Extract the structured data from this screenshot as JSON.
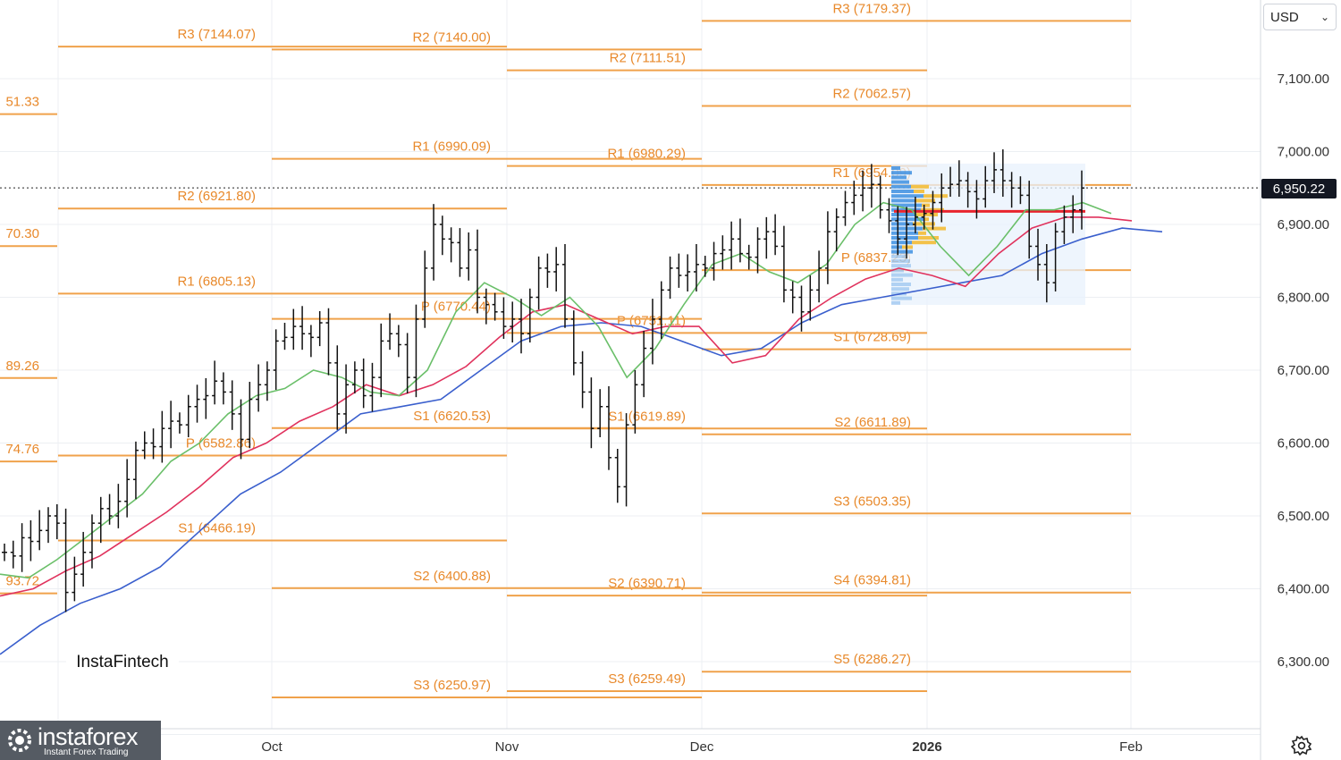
{
  "currency_selector": {
    "value": "USD"
  },
  "current_price_label": "6,950.22",
  "watermark_text": "InstaFintech",
  "brand": {
    "name": "instaforex",
    "tagline": "Instant Forex Trading"
  },
  "colors": {
    "pivot": "#f0a24b",
    "pivot_text": "#e8892b",
    "ma_fast": "#6abf69",
    "ma_mid": "#e0325d",
    "ma_slow": "#3a5fcd",
    "volume_profile_blue": "#3d8fe0",
    "volume_profile_yellow": "#f3c24a",
    "poc_line": "#e8242e",
    "bars": "#111111"
  },
  "icons": {
    "settings": "gear-icon",
    "dropdown": "chevron-down-icon"
  },
  "chart_data": {
    "type": "line",
    "description_series": [
      "price bars (OHLC)",
      "moving averages",
      "monthly pivot levels"
    ],
    "y_axis": {
      "ticks": [
        "6,300.00",
        "6,400.00",
        "6,500.00",
        "6,600.00",
        "6,700.00",
        "6,800.00",
        "6,900.00",
        "7,000.00",
        "7,100.00"
      ],
      "tick_values": [
        6300,
        6400,
        6500,
        6600,
        6700,
        6800,
        6900,
        7000,
        7100
      ],
      "ylim": [
        6220,
        7210
      ]
    },
    "x_axis": {
      "labels": [
        "Oct",
        "Nov",
        "Dec",
        "2026",
        "Feb"
      ]
    },
    "current_price": 6950.22,
    "pivot_levels": [
      {
        "label": "51.33",
        "value": 7051.33,
        "month": "Sep"
      },
      {
        "label": "70.30",
        "value": 6870.3,
        "month": "Sep"
      },
      {
        "label": "89.26",
        "value": 6689.26,
        "month": "Sep"
      },
      {
        "label": "74.76",
        "value": 6574.76,
        "month": "Sep"
      },
      {
        "label": "93.72",
        "value": 6393.72,
        "month": "Sep"
      },
      {
        "label": "R3 (7144.07)",
        "value": 7144.07,
        "month": "Oct"
      },
      {
        "label": "R2 (6921.80)",
        "value": 6921.8,
        "month": "Oct"
      },
      {
        "label": "R1 (6805.13)",
        "value": 6805.13,
        "month": "Oct"
      },
      {
        "label": "P (6582.86)",
        "value": 6582.86,
        "month": "Oct"
      },
      {
        "label": "S1 (6466.19)",
        "value": 6466.19,
        "month": "Oct"
      },
      {
        "label": "R2 (7140.00)",
        "value": 7140.0,
        "month": "Nov"
      },
      {
        "label": "R1 (6990.09)",
        "value": 6990.09,
        "month": "Nov"
      },
      {
        "label": "P (6770.44)",
        "value": 6770.44,
        "month": "Nov"
      },
      {
        "label": "S1 (6620.53)",
        "value": 6620.53,
        "month": "Nov"
      },
      {
        "label": "S2 (6400.88)",
        "value": 6400.88,
        "month": "Nov"
      },
      {
        "label": "S3 (6250.97)",
        "value": 6250.97,
        "month": "Nov"
      },
      {
        "label": "R2 (7111.51)",
        "value": 7111.51,
        "month": "Dec"
      },
      {
        "label": "R1 (6980.29)",
        "value": 6980.29,
        "month": "Dec"
      },
      {
        "label": "P (6751.11)",
        "value": 6751.11,
        "month": "Dec"
      },
      {
        "label": "S1 (6619.89)",
        "value": 6619.89,
        "month": "Dec"
      },
      {
        "label": "S2 (6390.71)",
        "value": 6390.71,
        "month": "Dec"
      },
      {
        "label": "S3 (6259.49)",
        "value": 6259.49,
        "month": "Dec"
      },
      {
        "label": "R3 (7179.37)",
        "value": 7179.37,
        "month": "Jan"
      },
      {
        "label": "R2 (7062.57)",
        "value": 7062.57,
        "month": "Jan"
      },
      {
        "label": "R1 (6954.09)",
        "value": 6954.09,
        "month": "Jan"
      },
      {
        "label": "P (6837.23)",
        "value": 6837.23,
        "month": "Jan"
      },
      {
        "label": "S1 (6728.69)",
        "value": 6728.69,
        "month": "Jan"
      },
      {
        "label": "S2 (6611.89)",
        "value": 6611.89,
        "month": "Jan"
      },
      {
        "label": "S3 (6503.35)",
        "value": 6503.35,
        "month": "Jan"
      },
      {
        "label": "S4 (6394.81)",
        "value": 6394.81,
        "month": "Jan"
      },
      {
        "label": "S5 (6286.27)",
        "value": 6286.27,
        "month": "Jan"
      }
    ],
    "bars_close": [
      6450,
      6445,
      6470,
      6465,
      6480,
      6500,
      6490,
      6395,
      6420,
      6450,
      6490,
      6510,
      6500,
      6520,
      6550,
      6590,
      6600,
      6595,
      6620,
      6630,
      6625,
      6650,
      6660,
      6665,
      6685,
      6670,
      6640,
      6605,
      6660,
      6680,
      6700,
      6740,
      6745,
      6760,
      6750,
      6745,
      6765,
      6710,
      6640,
      6680,
      6700,
      6665,
      6690,
      6740,
      6750,
      6735,
      6690,
      6770,
      6840,
      6900,
      6880,
      6875,
      6840,
      6865,
      6800,
      6790,
      6780,
      6760,
      6770,
      6750,
      6800,
      6840,
      6835,
      6845,
      6770,
      6710,
      6670,
      6620,
      6650,
      6580,
      6540,
      6625,
      6680,
      6730,
      6770,
      6810,
      6840,
      6830,
      6835,
      6845,
      6840,
      6860,
      6865,
      6880,
      6860,
      6855,
      6880,
      6890,
      6870,
      6810,
      6800,
      6780,
      6810,
      6840,
      6890,
      6910,
      6930,
      6940,
      6950,
      6955,
      6920,
      6905,
      6880,
      6900,
      6910,
      6915,
      6930,
      6950,
      6955,
      6960,
      6945,
      6935,
      6960,
      6975,
      6960,
      6950,
      6940,
      6870,
      6845,
      6820,
      6890,
      6910,
      6920,
      6950
    ],
    "ma_fast": [
      6420,
      6415,
      6440,
      6470,
      6500,
      6530,
      6575,
      6600,
      6640,
      6665,
      6675,
      6700,
      6690,
      6670,
      6665,
      6700,
      6780,
      6820,
      6800,
      6775,
      6800,
      6760,
      6690,
      6730,
      6790,
      6845,
      6860,
      6835,
      6820,
      6845,
      6900,
      6930,
      6920,
      6870,
      6830,
      6870,
      6920,
      6920,
      6930,
      6915
    ],
    "ma_mid": [
      6390,
      6400,
      6425,
      6445,
      6475,
      6505,
      6540,
      6580,
      6600,
      6630,
      6650,
      6680,
      6665,
      6680,
      6705,
      6745,
      6780,
      6790,
      6770,
      6750,
      6760,
      6760,
      6710,
      6720,
      6770,
      6800,
      6825,
      6840,
      6830,
      6815,
      6860,
      6895,
      6910,
      6910,
      6905
    ],
    "ma_slow": [
      6310,
      6350,
      6380,
      6400,
      6430,
      6480,
      6530,
      6560,
      6600,
      6640,
      6650,
      6660,
      6700,
      6740,
      6760,
      6765,
      6760,
      6740,
      6720,
      6730,
      6765,
      6790,
      6800,
      6810,
      6820,
      6830,
      6860,
      6880,
      6895,
      6890
    ],
    "volume_profile_poc": 6918
  }
}
